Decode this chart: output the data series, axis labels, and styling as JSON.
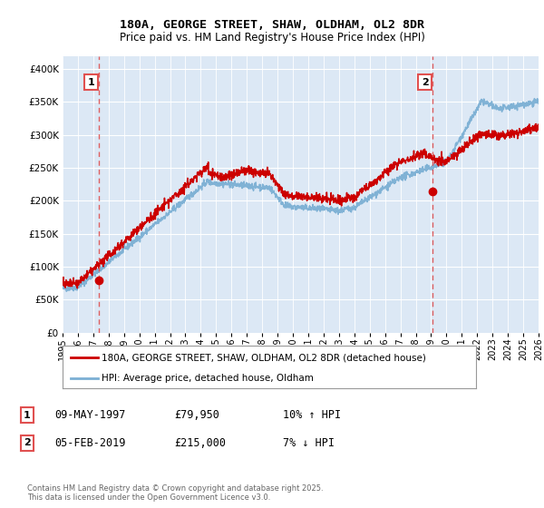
{
  "title": "180A, GEORGE STREET, SHAW, OLDHAM, OL2 8DR",
  "subtitle": "Price paid vs. HM Land Registry's House Price Index (HPI)",
  "legend_line1": "180A, GEORGE STREET, SHAW, OLDHAM, OL2 8DR (detached house)",
  "legend_line2": "HPI: Average price, detached house, Oldham",
  "annotation1_date": "09-MAY-1997",
  "annotation1_price": "£79,950",
  "annotation1_hpi": "10% ↑ HPI",
  "annotation2_date": "05-FEB-2019",
  "annotation2_price": "£215,000",
  "annotation2_hpi": "7% ↓ HPI",
  "footer": "Contains HM Land Registry data © Crown copyright and database right 2025.\nThis data is licensed under the Open Government Licence v3.0.",
  "red_color": "#cc0000",
  "blue_color": "#7bafd4",
  "fig_bg": "#ffffff",
  "plot_bg": "#dce8f5",
  "grid_color": "#ffffff",
  "dashed_line_color": "#e05050",
  "ylim": [
    0,
    420000
  ],
  "yticks": [
    0,
    50000,
    100000,
    150000,
    200000,
    250000,
    300000,
    350000,
    400000
  ],
  "year_start": 1995,
  "year_end": 2026,
  "sale1_year": 1997.37,
  "sale1_value": 79950,
  "sale2_year": 2019.09,
  "sale2_value": 215000
}
